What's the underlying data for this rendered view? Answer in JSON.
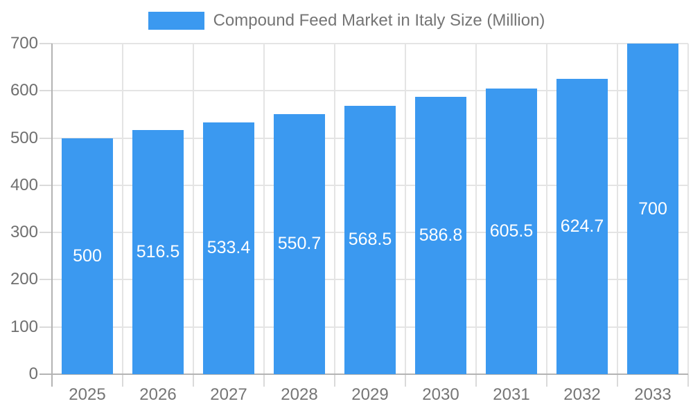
{
  "chart_data": {
    "type": "bar",
    "title": "Compound Feed Market in Italy Size (Million)",
    "categories": [
      "2025",
      "2026",
      "2027",
      "2028",
      "2029",
      "2030",
      "2031",
      "2032",
      "2033"
    ],
    "values": [
      500,
      516.5,
      533.4,
      550.7,
      568.5,
      586.8,
      605.5,
      624.7,
      700
    ],
    "value_labels": [
      "500",
      "516.5",
      "533.4",
      "550.7",
      "568.5",
      "586.8",
      "605.5",
      "624.7",
      "700"
    ],
    "ylim": [
      0,
      700
    ],
    "yticks": [
      0,
      100,
      200,
      300,
      400,
      500,
      600,
      700
    ],
    "grid": true,
    "legend_position": "top",
    "colors": {
      "bar": "#3B99F0",
      "axis": "#B3B3B3",
      "grid": "#E4E4E4",
      "tick": "#DADADA",
      "axis_text": "#6F6F6F",
      "value_text": "#FFFFFF",
      "background": "#FFFFFF"
    }
  }
}
